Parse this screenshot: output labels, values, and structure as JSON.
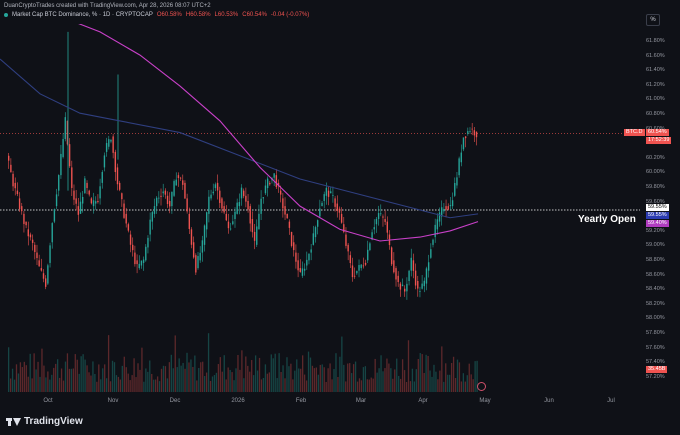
{
  "topbar": {
    "author": "DuanCryptoTrades created with TradingView.com, Apr 28, 2026 08:07 UTC+2"
  },
  "header": {
    "symbol": "Market Cap BTC Dominance, % · 1D · CRYPTOCAP",
    "open": "O60.58%",
    "high": "H60.58%",
    "low": "L60.53%",
    "close": "C60.54%",
    "change": "-0.04 (-0.07%)"
  },
  "scale_button": "%",
  "yaxis_ticks": [
    "61.80%",
    "61.60%",
    "61.40%",
    "61.20%",
    "61.00%",
    "60.80%",
    "60.60%",
    "60.40%",
    "60.20%",
    "60.00%",
    "59.80%",
    "59.60%",
    "59.40%",
    "59.20%",
    "59.00%",
    "58.80%",
    "58.60%",
    "58.40%",
    "58.20%",
    "58.00%",
    "57.80%",
    "57.60%",
    "57.40%",
    "57.20%"
  ],
  "xaxis_ticks": [
    "Oct",
    "Nov",
    "Dec",
    "2026",
    "Feb",
    "Mar",
    "Apr",
    "May",
    "Jun",
    "Jul"
  ],
  "price_tags": {
    "symbol_label": "BTC.D",
    "current": "60.54%",
    "countdown": "17:52:39",
    "level_a": "59.55%",
    "level_b": "59.55%",
    "ma_value": "59.40%",
    "volume": "35.45B"
  },
  "annotation": "Yearly Open",
  "footer": {
    "brand": "TradingView"
  },
  "colors": {
    "up": "#26a69a",
    "down": "#ef5350",
    "ma_fast": "#c840c8",
    "ma_slow": "#2f3f80",
    "bg": "#0f1117"
  },
  "chart_data": {
    "type": "line",
    "ylim": [
      57.2,
      61.9
    ],
    "series": [
      {
        "values": [
          60.25,
          59.9,
          59.6,
          59.3,
          59.1,
          58.8,
          58.6,
          59.4,
          60.0,
          60.7,
          59.8,
          59.5,
          59.9,
          59.6,
          59.7,
          60.3,
          60.5,
          59.9,
          59.5,
          59.1,
          58.8,
          58.9,
          59.4,
          59.7,
          59.8,
          59.6,
          60.0,
          59.9,
          59.3,
          58.8,
          59.1,
          59.7,
          59.9,
          59.6,
          59.3,
          59.5,
          59.8,
          59.6,
          59.1,
          59.7,
          59.9,
          60.0,
          59.7,
          59.4,
          59.0,
          58.7,
          58.9,
          59.2,
          59.6,
          59.8,
          59.7,
          59.5,
          59.1,
          58.7,
          58.8,
          58.9,
          59.3,
          59.5,
          59.4,
          58.9,
          58.6,
          58.5,
          58.9,
          58.5,
          58.6,
          59.1,
          59.4,
          59.6,
          59.6,
          60.0,
          60.5,
          60.6,
          60.54
        ]
      }
    ]
  }
}
